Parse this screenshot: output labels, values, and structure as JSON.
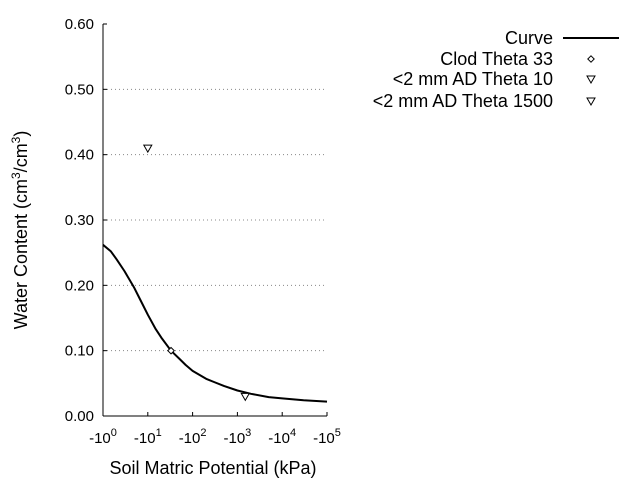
{
  "chart_data": {
    "type": "line",
    "x_scale": "log",
    "x_sign": "negative",
    "xlabel": "Soil Matric Potential (kPa)",
    "ylabel": "Water Content (cm3/cm3)",
    "ylabel_parts": [
      "Water Content (cm",
      "3",
      "/cm",
      "3",
      ")"
    ],
    "xlim": [
      1,
      100000
    ],
    "ylim": [
      0,
      0.6
    ],
    "x_ticks": [
      {
        "value": 1,
        "base": "-10",
        "exp": "0"
      },
      {
        "value": 10,
        "base": "-10",
        "exp": "1"
      },
      {
        "value": 100,
        "base": "-10",
        "exp": "2"
      },
      {
        "value": 1000,
        "base": "-10",
        "exp": "3"
      },
      {
        "value": 10000,
        "base": "-10",
        "exp": "4"
      },
      {
        "value": 100000,
        "base": "-10",
        "exp": "5"
      }
    ],
    "y_ticks": [
      {
        "value": 0.0,
        "label": "0.00"
      },
      {
        "value": 0.1,
        "label": "0.10"
      },
      {
        "value": 0.2,
        "label": "0.20"
      },
      {
        "value": 0.3,
        "label": "0.30"
      },
      {
        "value": 0.4,
        "label": "0.40"
      },
      {
        "value": 0.5,
        "label": "0.50"
      },
      {
        "value": 0.6,
        "label": "0.60"
      }
    ],
    "grid": "horizontal dotted",
    "legend_position": "top-right",
    "series": [
      {
        "name": "Curve",
        "marker": "line",
        "x": [
          1,
          1.5,
          2,
          3,
          5,
          7,
          10,
          15,
          20,
          33,
          50,
          70,
          100,
          200,
          300,
          500,
          1000,
          2000,
          5000,
          10000,
          30000,
          100000
        ],
        "y": [
          0.262,
          0.252,
          0.24,
          0.222,
          0.196,
          0.176,
          0.155,
          0.133,
          0.12,
          0.1,
          0.088,
          0.078,
          0.069,
          0.057,
          0.052,
          0.046,
          0.039,
          0.034,
          0.029,
          0.027,
          0.024,
          0.022
        ]
      },
      {
        "name": "Clod Theta 33",
        "marker": "diamond",
        "x": [
          33
        ],
        "y": [
          0.1
        ]
      },
      {
        "name": "<2 mm AD Theta 10",
        "marker": "triangle-down",
        "x": [
          10
        ],
        "y": [
          0.41
        ]
      },
      {
        "name": "<2 mm AD Theta 1500",
        "marker": "triangle-down",
        "x": [
          1500
        ],
        "y": [
          0.03
        ]
      }
    ]
  }
}
